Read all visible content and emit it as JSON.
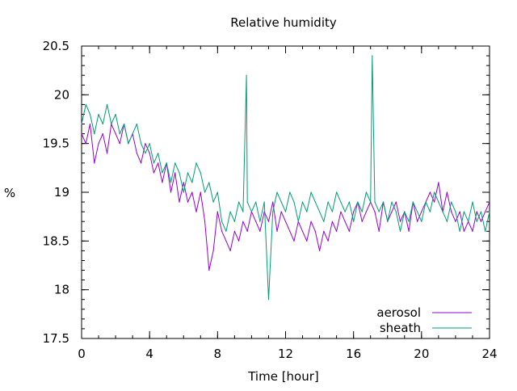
{
  "chart_data": {
    "type": "line",
    "title": "Relative humidity",
    "xlabel": "Time [hour]",
    "ylabel": "%",
    "xlim": [
      0,
      24
    ],
    "ylim": [
      17.5,
      20.5
    ],
    "xticks": [
      0,
      4,
      8,
      12,
      16,
      20,
      24
    ],
    "yticks": [
      17.5,
      18,
      18.5,
      19,
      19.5,
      20,
      20.5
    ],
    "x_minor_step": 1,
    "y_minor_step": 0.1,
    "grid": false,
    "legend": "bottom-right",
    "series": [
      {
        "name": "aerosol",
        "color": "#9400d3",
        "x": [
          0,
          0.25,
          0.5,
          0.75,
          1,
          1.25,
          1.5,
          1.75,
          2,
          2.25,
          2.5,
          2.75,
          3,
          3.25,
          3.5,
          3.75,
          4,
          4.25,
          4.5,
          4.75,
          5,
          5.25,
          5.5,
          5.75,
          6,
          6.25,
          6.5,
          6.75,
          7,
          7.25,
          7.5,
          7.75,
          8,
          8.25,
          8.5,
          8.75,
          9,
          9.25,
          9.5,
          9.75,
          10,
          10.25,
          10.5,
          10.75,
          11,
          11.25,
          11.5,
          11.75,
          12,
          12.25,
          12.5,
          12.75,
          13,
          13.25,
          13.5,
          13.75,
          14,
          14.25,
          14.5,
          14.75,
          15,
          15.25,
          15.5,
          15.75,
          16,
          16.25,
          16.5,
          16.75,
          17,
          17.25,
          17.5,
          17.75,
          18,
          18.25,
          18.5,
          18.75,
          19,
          19.25,
          19.5,
          19.75,
          20,
          20.25,
          20.5,
          20.75,
          21,
          21.25,
          21.5,
          21.75,
          22,
          22.25,
          22.5,
          22.75,
          23,
          23.25,
          23.5,
          23.75,
          24
        ],
        "y": [
          19.6,
          19.5,
          19.7,
          19.3,
          19.5,
          19.6,
          19.4,
          19.7,
          19.6,
          19.5,
          19.7,
          19.5,
          19.6,
          19.4,
          19.3,
          19.5,
          19.4,
          19.2,
          19.3,
          19.1,
          19.3,
          19.0,
          19.2,
          18.9,
          19.1,
          18.9,
          19.0,
          18.8,
          19.0,
          18.7,
          18.2,
          18.4,
          18.8,
          18.6,
          18.5,
          18.4,
          18.6,
          18.5,
          18.7,
          18.6,
          18.8,
          18.7,
          18.6,
          18.8,
          18.7,
          18.9,
          18.6,
          18.8,
          18.7,
          18.6,
          18.5,
          18.7,
          18.6,
          18.5,
          18.7,
          18.6,
          18.4,
          18.6,
          18.5,
          18.7,
          18.6,
          18.8,
          18.7,
          18.6,
          18.8,
          18.9,
          18.7,
          18.8,
          18.9,
          18.8,
          18.6,
          18.9,
          18.7,
          18.8,
          18.9,
          18.7,
          18.8,
          18.6,
          18.9,
          18.7,
          18.8,
          18.9,
          19.0,
          18.9,
          19.1,
          18.8,
          19.0,
          18.8,
          18.7,
          18.8,
          18.6,
          18.7,
          18.6,
          18.8,
          18.7,
          18.8,
          18.9
        ]
      },
      {
        "name": "sheath",
        "color": "#009e73",
        "x": [
          0,
          0.25,
          0.5,
          0.75,
          1,
          1.25,
          1.5,
          1.75,
          2,
          2.25,
          2.5,
          2.75,
          3,
          3.25,
          3.5,
          3.75,
          4,
          4.25,
          4.5,
          4.75,
          5,
          5.25,
          5.5,
          5.75,
          6,
          6.25,
          6.5,
          6.75,
          7,
          7.25,
          7.5,
          7.75,
          8,
          8.25,
          8.5,
          8.75,
          9,
          9.25,
          9.5,
          9.7,
          9.75,
          10,
          10.25,
          10.5,
          10.75,
          11,
          11.25,
          11.5,
          11.75,
          12,
          12.25,
          12.5,
          12.75,
          13,
          13.25,
          13.5,
          13.75,
          14,
          14.25,
          14.5,
          14.75,
          15,
          15.25,
          15.5,
          15.75,
          16,
          16.25,
          16.5,
          16.75,
          17,
          17.1,
          17.25,
          17.5,
          17.75,
          18,
          18.25,
          18.5,
          18.75,
          19,
          19.25,
          19.5,
          19.75,
          20,
          20.25,
          20.5,
          20.75,
          21,
          21.25,
          21.5,
          21.75,
          22,
          22.25,
          22.5,
          22.75,
          23,
          23.25,
          23.5,
          23.75,
          24
        ],
        "y": [
          19.7,
          19.9,
          19.8,
          19.6,
          19.8,
          19.7,
          19.9,
          19.7,
          19.8,
          19.6,
          19.7,
          19.5,
          19.6,
          19.7,
          19.5,
          19.4,
          19.5,
          19.3,
          19.4,
          19.2,
          19.3,
          19.1,
          19.3,
          19.2,
          19.0,
          19.2,
          19.1,
          19.3,
          19.2,
          19.0,
          19.1,
          18.9,
          19.0,
          18.7,
          18.6,
          18.8,
          18.7,
          18.9,
          18.8,
          20.2,
          18.9,
          18.8,
          18.9,
          18.7,
          18.9,
          17.9,
          18.8,
          19.0,
          18.9,
          18.8,
          19.0,
          18.9,
          18.7,
          18.9,
          18.8,
          19.0,
          18.9,
          18.8,
          18.7,
          18.9,
          18.8,
          19.0,
          18.9,
          18.8,
          18.9,
          18.7,
          18.9,
          18.8,
          19.0,
          18.9,
          20.4,
          18.9,
          18.8,
          18.9,
          18.7,
          18.9,
          18.8,
          18.6,
          18.8,
          18.7,
          18.9,
          18.8,
          18.7,
          18.9,
          18.8,
          19.0,
          18.9,
          18.8,
          18.7,
          18.9,
          18.8,
          18.6,
          18.8,
          18.7,
          18.9,
          18.7,
          18.8,
          18.6,
          18.8
        ]
      }
    ]
  }
}
